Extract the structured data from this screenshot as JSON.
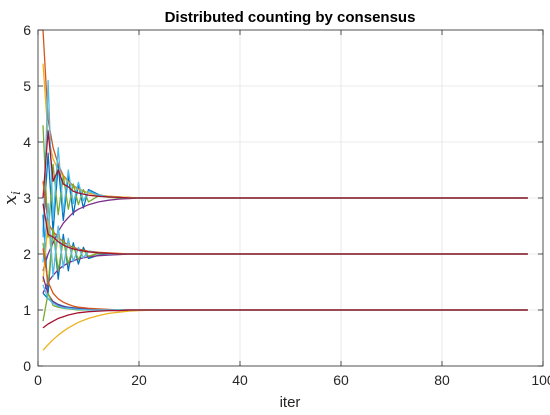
{
  "chart_data": {
    "type": "line",
    "title": "Distributed counting by consensus",
    "xlabel": "iter",
    "ylabel_base": "x",
    "ylabel_sub": "i",
    "xlim": [
      0,
      100
    ],
    "ylim": [
      0,
      6
    ],
    "xticks": [
      0,
      20,
      40,
      60,
      80,
      100
    ],
    "yticks": [
      0,
      1,
      2,
      3,
      4,
      5,
      6
    ],
    "grid": true,
    "legend": "none",
    "series": [
      {
        "color": "#0072BD",
        "x": [
          1,
          2,
          3,
          4,
          5,
          6,
          7,
          8,
          9,
          10,
          12,
          14,
          16,
          18,
          20,
          24,
          30,
          40,
          60,
          80,
          97
        ],
        "y": [
          2.4,
          3.8,
          2.4,
          3.6,
          2.6,
          3.4,
          2.7,
          3.25,
          2.82,
          3.15,
          3.06,
          3.02,
          3.01,
          3.0,
          3.0,
          3.0,
          3.0,
          3.0,
          3.0,
          3.0,
          3.0
        ]
      },
      {
        "color": "#D95319",
        "x": [
          1,
          2,
          3,
          4,
          5,
          6,
          7,
          8,
          10,
          12,
          14,
          16,
          18,
          20,
          24,
          30,
          40,
          60,
          80,
          97
        ],
        "y": [
          6.0,
          4.4,
          3.9,
          3.6,
          3.4,
          3.3,
          3.22,
          3.16,
          3.09,
          3.05,
          3.03,
          3.02,
          3.01,
          3.0,
          3.0,
          3.0,
          3.0,
          3.0,
          3.0,
          3.0
        ]
      },
      {
        "color": "#EDB120",
        "x": [
          1,
          2,
          3,
          4,
          5,
          6,
          7,
          8,
          10,
          12,
          14,
          16,
          18,
          20,
          24,
          30,
          40,
          60,
          80,
          97
        ],
        "y": [
          5.4,
          4.1,
          3.7,
          3.5,
          3.38,
          3.28,
          3.2,
          3.15,
          3.09,
          3.05,
          3.03,
          3.02,
          3.01,
          3.0,
          3.0,
          3.0,
          3.0,
          3.0,
          3.0,
          3.0
        ]
      },
      {
        "color": "#7E2F8E",
        "x": [
          1,
          2,
          3,
          4,
          5,
          6,
          7,
          8,
          10,
          12,
          14,
          16,
          18,
          20,
          24,
          30,
          40,
          60,
          80,
          97
        ],
        "y": [
          1.7,
          2.0,
          2.2,
          2.4,
          2.55,
          2.65,
          2.74,
          2.8,
          2.88,
          2.93,
          2.96,
          2.98,
          2.99,
          3.0,
          3.0,
          3.0,
          3.0,
          3.0,
          3.0,
          3.0
        ]
      },
      {
        "color": "#77AC30",
        "x": [
          1,
          2,
          3,
          4,
          5,
          6,
          7,
          8,
          9,
          10,
          12,
          14,
          16,
          18,
          20,
          24,
          30,
          40,
          60,
          80,
          97
        ],
        "y": [
          4.3,
          2.3,
          3.6,
          2.7,
          3.4,
          2.8,
          3.25,
          2.88,
          3.15,
          2.93,
          3.04,
          3.01,
          3.0,
          3.0,
          3.0,
          3.0,
          3.0,
          3.0,
          3.0,
          3.0,
          3.0
        ]
      },
      {
        "color": "#4DBEEE",
        "x": [
          1,
          2,
          3,
          4,
          5,
          6,
          7,
          8,
          9,
          10,
          12,
          14,
          16,
          18,
          20,
          24,
          30,
          40,
          60,
          80,
          97
        ],
        "y": [
          2.3,
          5.1,
          2.6,
          3.9,
          2.75,
          3.5,
          2.9,
          3.28,
          2.95,
          3.12,
          3.05,
          3.02,
          3.01,
          3.0,
          3.0,
          3.0,
          3.0,
          3.0,
          3.0,
          3.0,
          3.0
        ]
      },
      {
        "color": "#A2142F",
        "x": [
          1,
          2,
          3,
          4,
          5,
          6,
          7,
          8,
          10,
          12,
          14,
          16,
          18,
          20,
          24,
          30,
          40,
          60,
          80,
          97
        ],
        "y": [
          3.0,
          4.2,
          3.3,
          3.5,
          3.25,
          3.2,
          3.12,
          3.09,
          3.05,
          3.03,
          3.02,
          3.01,
          3.0,
          3.0,
          3.0,
          3.0,
          3.0,
          3.0,
          3.0,
          3.0
        ]
      },
      {
        "color": "#0072BD",
        "x": [
          1,
          2,
          3,
          4,
          5,
          6,
          7,
          8,
          9,
          10,
          12,
          14,
          16,
          18,
          20,
          24,
          30,
          40,
          60,
          80,
          97
        ],
        "y": [
          2.7,
          1.3,
          2.5,
          1.55,
          2.35,
          1.7,
          2.2,
          1.82,
          2.12,
          1.92,
          1.98,
          2.0,
          2.0,
          2.0,
          2.0,
          2.0,
          2.0,
          2.0,
          2.0,
          2.0,
          2.0
        ]
      },
      {
        "color": "#D95319",
        "x": [
          1,
          2,
          3,
          4,
          5,
          6,
          7,
          8,
          10,
          12,
          14,
          16,
          18,
          20,
          24,
          30,
          40,
          60,
          80,
          97
        ],
        "y": [
          3.3,
          2.55,
          2.4,
          2.3,
          2.22,
          2.16,
          2.12,
          2.09,
          2.05,
          2.03,
          2.02,
          2.01,
          2.0,
          2.0,
          2.0,
          2.0,
          2.0,
          2.0,
          2.0,
          2.0
        ]
      },
      {
        "color": "#EDB120",
        "x": [
          1,
          2,
          3,
          4,
          5,
          6,
          7,
          8,
          9,
          10,
          12,
          14,
          16,
          18,
          20,
          24,
          30,
          40,
          60,
          80,
          97
        ],
        "y": [
          1.5,
          2.6,
          1.65,
          2.35,
          1.8,
          2.2,
          1.88,
          2.1,
          1.94,
          2.04,
          2.01,
          2.0,
          2.0,
          2.0,
          2.0,
          2.0,
          2.0,
          2.0,
          2.0,
          2.0,
          2.0
        ]
      },
      {
        "color": "#7E2F8E",
        "x": [
          1,
          2,
          3,
          4,
          5,
          6,
          7,
          8,
          10,
          12,
          14,
          16,
          18,
          20,
          24,
          30,
          40,
          60,
          80,
          97
        ],
        "y": [
          1.3,
          1.5,
          1.62,
          1.72,
          1.79,
          1.84,
          1.88,
          1.91,
          1.95,
          1.97,
          1.98,
          1.99,
          2.0,
          2.0,
          2.0,
          2.0,
          2.0,
          2.0,
          2.0,
          2.0
        ]
      },
      {
        "color": "#77AC30",
        "x": [
          1,
          2,
          3,
          4,
          5,
          6,
          7,
          8,
          9,
          10,
          12,
          14,
          16,
          18,
          20,
          24,
          30,
          40,
          60,
          80,
          97
        ],
        "y": [
          2.2,
          1.45,
          2.45,
          1.7,
          2.25,
          1.82,
          2.14,
          1.9,
          2.07,
          1.96,
          2.01,
          2.0,
          2.0,
          2.0,
          2.0,
          2.0,
          2.0,
          2.0,
          2.0,
          2.0,
          2.0
        ]
      },
      {
        "color": "#4DBEEE",
        "x": [
          1,
          2,
          3,
          4,
          5,
          6,
          7,
          8,
          9,
          10,
          12,
          14,
          16,
          18,
          20,
          24,
          30,
          40,
          60,
          80,
          97
        ],
        "y": [
          1.85,
          2.9,
          1.6,
          2.5,
          1.75,
          2.28,
          1.86,
          2.12,
          1.93,
          2.05,
          2.02,
          2.0,
          2.0,
          2.0,
          2.0,
          2.0,
          2.0,
          2.0,
          2.0,
          2.0,
          2.0
        ]
      },
      {
        "color": "#A2142F",
        "x": [
          1,
          2,
          3,
          4,
          5,
          6,
          7,
          8,
          10,
          12,
          14,
          16,
          18,
          20,
          24,
          30,
          40,
          60,
          80,
          97
        ],
        "y": [
          2.9,
          2.35,
          2.3,
          2.22,
          2.16,
          2.12,
          2.09,
          2.07,
          2.04,
          2.02,
          2.01,
          2.0,
          2.0,
          2.0,
          2.0,
          2.0,
          2.0,
          2.0,
          2.0,
          2.0
        ]
      },
      {
        "color": "#0072BD",
        "x": [
          1,
          2,
          3,
          4,
          5,
          6,
          7,
          8,
          10,
          12,
          14,
          16,
          18,
          20,
          24,
          30,
          40,
          60,
          80,
          97
        ],
        "y": [
          1.3,
          1.2,
          1.15,
          1.1,
          1.07,
          1.05,
          1.04,
          1.03,
          1.02,
          1.01,
          1.0,
          1.0,
          1.0,
          1.0,
          1.0,
          1.0,
          1.0,
          1.0,
          1.0,
          1.0
        ]
      },
      {
        "color": "#D95319",
        "x": [
          1,
          2,
          3,
          4,
          5,
          6,
          7,
          8,
          10,
          12,
          14,
          16,
          18,
          20,
          24,
          30,
          40,
          60,
          80,
          97
        ],
        "y": [
          2.1,
          1.5,
          1.3,
          1.2,
          1.14,
          1.1,
          1.07,
          1.05,
          1.03,
          1.02,
          1.01,
          1.0,
          1.0,
          1.0,
          1.0,
          1.0,
          1.0,
          1.0,
          1.0,
          1.0
        ]
      },
      {
        "color": "#EDB120",
        "x": [
          1,
          2,
          3,
          4,
          5,
          6,
          7,
          8,
          10,
          12,
          14,
          16,
          18,
          20,
          24,
          30,
          40,
          60,
          80,
          97
        ],
        "y": [
          0.28,
          0.38,
          0.47,
          0.55,
          0.62,
          0.68,
          0.73,
          0.78,
          0.85,
          0.9,
          0.94,
          0.96,
          0.98,
          0.99,
          1.0,
          1.0,
          1.0,
          1.0,
          1.0,
          1.0
        ]
      },
      {
        "color": "#7E2F8E",
        "x": [
          1,
          2,
          3,
          4,
          5,
          6,
          7,
          8,
          10,
          12,
          14,
          16,
          18,
          20,
          24,
          30,
          40,
          60,
          80,
          97
        ],
        "y": [
          1.6,
          1.28,
          1.15,
          1.09,
          1.06,
          1.04,
          1.03,
          1.02,
          1.01,
          1.0,
          1.0,
          1.0,
          1.0,
          1.0,
          1.0,
          1.0,
          1.0,
          1.0,
          1.0,
          1.0
        ]
      },
      {
        "color": "#77AC30",
        "x": [
          1,
          2,
          3,
          4,
          5,
          6,
          7,
          8,
          10,
          12,
          14,
          16,
          18,
          20,
          24,
          30,
          40,
          60,
          80,
          97
        ],
        "y": [
          0.8,
          1.3,
          1.08,
          1.05,
          1.03,
          1.02,
          1.01,
          1.0,
          1.0,
          1.0,
          1.0,
          1.0,
          1.0,
          1.0,
          1.0,
          1.0,
          1.0,
          1.0,
          1.0,
          1.0
        ]
      },
      {
        "color": "#4DBEEE",
        "x": [
          1,
          2,
          3,
          4,
          5,
          6,
          7,
          8,
          10,
          12,
          14,
          16,
          18,
          20,
          24,
          30,
          40,
          60,
          80,
          97
        ],
        "y": [
          1.45,
          1.2,
          1.12,
          1.07,
          1.04,
          1.03,
          1.02,
          1.01,
          1.0,
          1.0,
          1.0,
          1.0,
          1.0,
          1.0,
          1.0,
          1.0,
          1.0,
          1.0,
          1.0,
          1.0
        ]
      },
      {
        "color": "#A2142F",
        "x": [
          1,
          2,
          3,
          4,
          5,
          6,
          7,
          8,
          10,
          12,
          14,
          16,
          18,
          20,
          24,
          30,
          40,
          60,
          80,
          97
        ],
        "y": [
          0.68,
          0.75,
          0.8,
          0.85,
          0.88,
          0.91,
          0.93,
          0.95,
          0.97,
          0.98,
          0.99,
          0.99,
          1.0,
          1.0,
          1.0,
          1.0,
          1.0,
          1.0,
          1.0,
          1.0
        ]
      }
    ]
  }
}
